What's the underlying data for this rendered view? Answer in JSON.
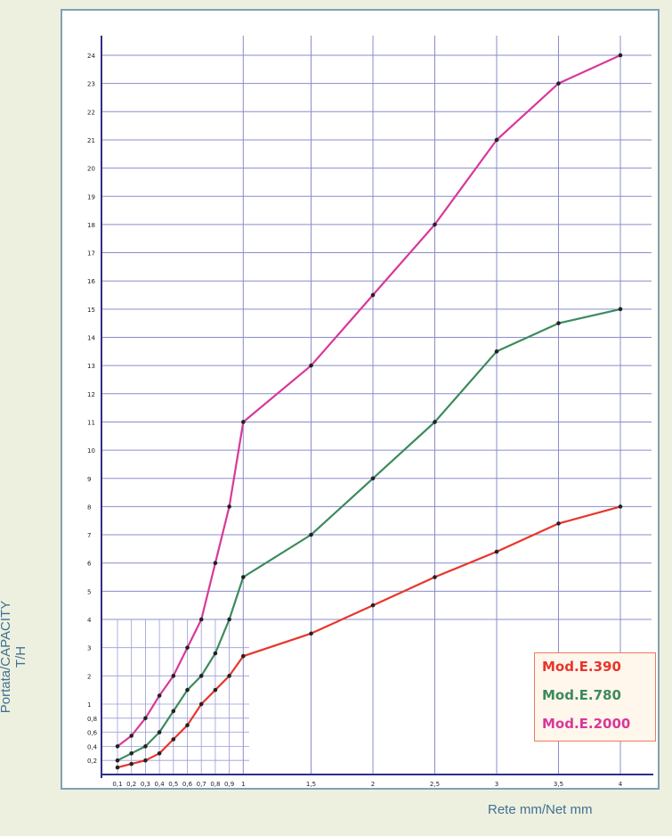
{
  "chart_data": {
    "type": "line",
    "xlabel": "Rete mm/Net mm",
    "ylabel_line1": "Portata/CAPACITY",
    "ylabel_line2": "T/H",
    "x_ticks": [
      "0,1",
      "0,2",
      "0,3",
      "0,4",
      "0,5",
      "0,6",
      "0,7",
      "0,8",
      "0,9",
      "1",
      "1,5",
      "2",
      "2,5",
      "3",
      "3,5",
      "4"
    ],
    "y_ticks_lower": [
      "0,2",
      "0,4",
      "0,6",
      "0,8",
      "1",
      "2",
      "3",
      "4"
    ],
    "y_ticks_upper": [
      "5",
      "6",
      "7",
      "8",
      "9",
      "10",
      "11",
      "12",
      "13",
      "14",
      "15",
      "16",
      "17",
      "18",
      "19",
      "20",
      "21",
      "22",
      "23",
      "24"
    ],
    "x": [
      0.1,
      0.2,
      0.3,
      0.4,
      0.5,
      0.6,
      0.7,
      0.8,
      0.9,
      1,
      1.5,
      2,
      2.5,
      3,
      3.5,
      4
    ],
    "series": [
      {
        "name": "Mod.E.390",
        "color": "#e8352a",
        "values": [
          0.1,
          0.15,
          0.2,
          0.3,
          0.5,
          0.7,
          1,
          1.5,
          2,
          2.7,
          3.5,
          4.5,
          5.5,
          6.4,
          7.4,
          8
        ]
      },
      {
        "name": "Mod.E.780",
        "color": "#3c8b5c",
        "values": [
          0.2,
          0.3,
          0.4,
          0.6,
          0.9,
          1.5,
          2,
          2.8,
          4,
          5.5,
          7,
          9,
          11,
          13.5,
          14.5,
          15
        ]
      },
      {
        "name": "Mod.E.2000",
        "color": "#d8389a",
        "values": [
          0.4,
          0.55,
          0.8,
          1.3,
          2,
          3,
          4,
          6,
          8,
          11,
          13,
          15.5,
          18,
          21,
          23,
          24
        ]
      }
    ],
    "legend_position": "bottom-right",
    "grid": true
  }
}
